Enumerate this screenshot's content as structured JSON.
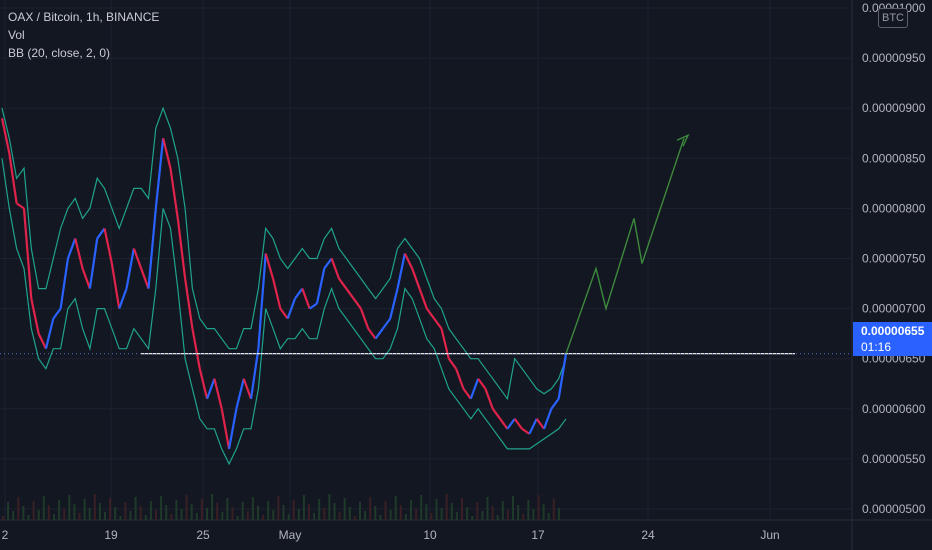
{
  "legend": {
    "symbol": "OAX / Bitcoin, 1h, BINANCE",
    "vol": "Vol",
    "bb": "BB (20, close, 2, 0)"
  },
  "badge": {
    "currency": "BTC"
  },
  "last_price": {
    "value": "0.00000655",
    "countdown": "01:16"
  },
  "colors": {
    "background": "#131722",
    "grid": "#1e2230",
    "axis_text": "#b2b5be",
    "price_line": "#5b75c9",
    "bb_band": "#1fa38c",
    "up": "#2962ff",
    "down": "#e0234a",
    "support": "#ffffff",
    "projection": "#3d8a3d",
    "price_tag": "#2962ff"
  },
  "chart_data": {
    "type": "line",
    "title": "OAX / Bitcoin, 1h, BINANCE",
    "y_ticks": [
      "0.00001000",
      "0.00000950",
      "0.00000900",
      "0.00000850",
      "0.00000800",
      "0.00000750",
      "0.00000700",
      "0.00000650",
      "0.00000600",
      "0.00000550",
      "0.00000500"
    ],
    "ylim": [
      4.5e-06,
      1e-05
    ],
    "x_ticks": [
      "2",
      "19",
      "25",
      "May",
      "10",
      "17",
      "24",
      "Jun"
    ],
    "price_series": [
      [
        8.9e-06,
        8.55e-06,
        8.05e-06,
        8e-06,
        7.1e-06,
        6.75e-06,
        6.6e-06,
        6.9e-06,
        7e-06,
        7.5e-06,
        7.7e-06,
        7.4e-06,
        7.2e-06,
        7.7e-06,
        7.8e-06,
        7.45e-06,
        7e-06,
        7.2e-06,
        7.6e-06,
        7.4e-06,
        7.2e-06,
        8e-06,
        8.7e-06,
        8.4e-06,
        7.9e-06,
        7.3e-06,
        6.8e-06,
        6.4e-06,
        6.1e-06,
        6.3e-06,
        6e-06,
        5.6e-06,
        6e-06,
        6.3e-06,
        6.1e-06,
        6.6e-06,
        7.55e-06,
        7.3e-06,
        7e-06,
        6.9e-06,
        7.1e-06,
        7.2e-06,
        7e-06,
        7.05e-06,
        7.4e-06,
        7.5e-06,
        7.3e-06,
        7.2e-06,
        7.1e-06,
        7e-06,
        6.8e-06,
        6.7e-06,
        6.8e-06,
        6.9e-06,
        7.2e-06,
        7.55e-06,
        7.4e-06,
        7.2e-06,
        7e-06,
        6.9e-06,
        6.8e-06,
        6.5e-06,
        6.4e-06,
        6.2e-06,
        6.1e-06,
        6.3e-06,
        6.2e-06,
        6e-06,
        5.9e-06,
        5.8e-06,
        5.9e-06,
        5.8e-06,
        5.75e-06,
        5.9e-06,
        5.8e-06,
        6e-06,
        6.1e-06,
        6.55e-06
      ]
    ],
    "bb_upper_series": [
      9e-06,
      8.7e-06,
      8.3e-06,
      8.4e-06,
      7.6e-06,
      7.2e-06,
      7.2e-06,
      7.5e-06,
      7.8e-06,
      8e-06,
      8.1e-06,
      7.9e-06,
      8e-06,
      8.3e-06,
      8.2e-06,
      8e-06,
      7.8e-06,
      8e-06,
      8.2e-06,
      8.2e-06,
      8.1e-06,
      8.8e-06,
      9e-06,
      8.8e-06,
      8.5e-06,
      8e-06,
      7.2e-06,
      6.9e-06,
      6.8e-06,
      6.8e-06,
      6.7e-06,
      6.6e-06,
      6.6e-06,
      6.8e-06,
      6.8e-06,
      7.2e-06,
      7.8e-06,
      7.7e-06,
      7.5e-06,
      7.4e-06,
      7.5e-06,
      7.6e-06,
      7.5e-06,
      7.5e-06,
      7.7e-06,
      7.8e-06,
      7.6e-06,
      7.5e-06,
      7.4e-06,
      7.3e-06,
      7.2e-06,
      7.1e-06,
      7.2e-06,
      7.3e-06,
      7.6e-06,
      7.7e-06,
      7.6e-06,
      7.5e-06,
      7.3e-06,
      7.1e-06,
      7e-06,
      6.8e-06,
      6.7e-06,
      6.6e-06,
      6.5e-06,
      6.5e-06,
      6.4e-06,
      6.3e-06,
      6.2e-06,
      6.1e-06,
      6.5e-06,
      6.4e-06,
      6.3e-06,
      6.2e-06,
      6.15e-06,
      6.2e-06,
      6.3e-06,
      6.5e-06
    ],
    "bb_lower_series": [
      8.5e-06,
      8e-06,
      7.6e-06,
      7.4e-06,
      6.8e-06,
      6.5e-06,
      6.4e-06,
      6.6e-06,
      6.6e-06,
      7e-06,
      7.1e-06,
      6.8e-06,
      6.6e-06,
      7e-06,
      7e-06,
      6.8e-06,
      6.6e-06,
      6.6e-06,
      6.8e-06,
      6.7e-06,
      6.6e-06,
      7.2e-06,
      8e-06,
      7.8e-06,
      7.2e-06,
      6.5e-06,
      6.2e-06,
      5.9e-06,
      5.8e-06,
      5.8e-06,
      5.6e-06,
      5.45e-06,
      5.6e-06,
      5.8e-06,
      5.8e-06,
      6.2e-06,
      7e-06,
      6.8e-06,
      6.6e-06,
      6.7e-06,
      6.7e-06,
      6.8e-06,
      6.7e-06,
      6.7e-06,
      7e-06,
      7.2e-06,
      7e-06,
      6.9e-06,
      6.8e-06,
      6.7e-06,
      6.6e-06,
      6.5e-06,
      6.5e-06,
      6.6e-06,
      6.8e-06,
      7.2e-06,
      7.1e-06,
      6.9e-06,
      6.7e-06,
      6.6e-06,
      6.4e-06,
      6.2e-06,
      6.1e-06,
      6e-06,
      5.9e-06,
      6e-06,
      5.9e-06,
      5.8e-06,
      5.7e-06,
      5.6e-06,
      5.6e-06,
      5.6e-06,
      5.6e-06,
      5.65e-06,
      5.7e-06,
      5.75e-06,
      5.8e-06,
      5.9e-06
    ],
    "support_level": 6.55e-06,
    "projection_path": [
      6.55e-06,
      7.4e-06,
      7e-06,
      7.9e-06,
      7.45e-06,
      8.7e-06
    ],
    "last_value": 6.55e-06,
    "grid": true,
    "legend_position": "top-left"
  }
}
